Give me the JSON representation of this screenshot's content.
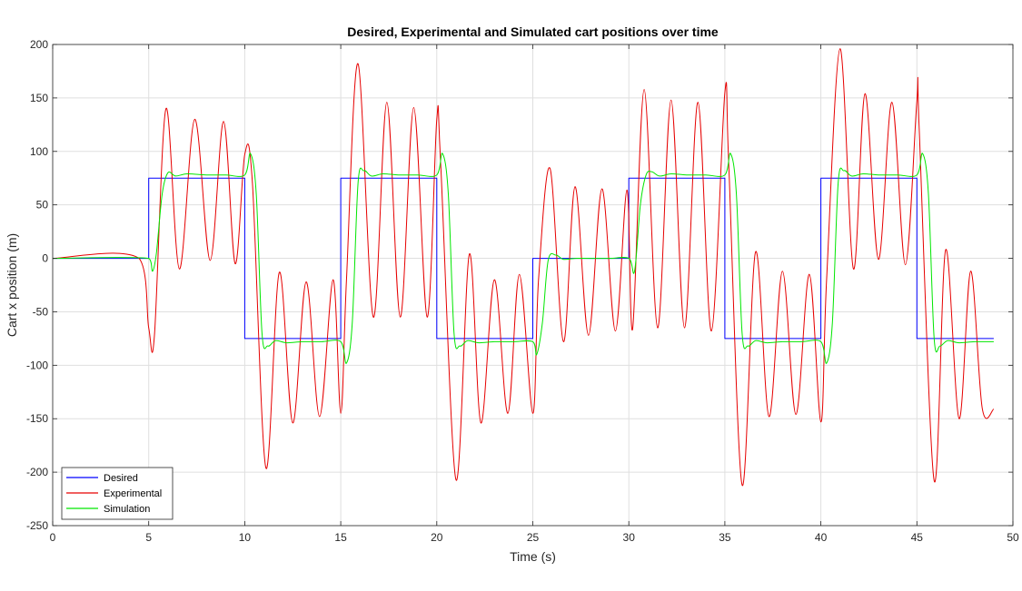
{
  "chart_data": {
    "type": "line",
    "title": "Desired, Experimental and Simulated cart positions over time",
    "xlabel": "Time (s)",
    "ylabel": "Cart x position (m)",
    "xlim": [
      0,
      50
    ],
    "ylim": [
      -250,
      200
    ],
    "xticks": [
      0,
      5,
      10,
      15,
      20,
      25,
      30,
      35,
      40,
      45,
      50
    ],
    "yticks": [
      -250,
      -200,
      -150,
      -100,
      -50,
      0,
      50,
      100,
      150,
      200
    ],
    "xtick_labels": [
      "0",
      "5",
      "10",
      "15",
      "20",
      "25",
      "30",
      "35",
      "40",
      "45",
      "50"
    ],
    "ytick_labels": [
      "-250",
      "-200",
      "-150",
      "-100",
      "-50",
      "0",
      "50",
      "100",
      "150",
      "200"
    ],
    "grid": true,
    "legend_position": "bottom-left",
    "series": [
      {
        "name": "Desired",
        "color": "#0000ff",
        "x": [
          0,
          5,
          5,
          10,
          10,
          15,
          15,
          20,
          20,
          25,
          25,
          30,
          30,
          35,
          35,
          40,
          40,
          45,
          45,
          49
        ],
        "y": [
          0,
          0,
          75,
          75,
          -75,
          -75,
          75,
          75,
          -75,
          -75,
          0,
          0,
          75,
          75,
          -75,
          -75,
          75,
          75,
          -75,
          -75
        ]
      },
      {
        "name": "Experimental",
        "color": "#e60000",
        "x": [
          0,
          4.5,
          5.0,
          5.3,
          5.9,
          6.6,
          7.4,
          8.2,
          8.9,
          9.5,
          10.0,
          10.4,
          11.1,
          11.8,
          12.5,
          13.2,
          13.9,
          14.6,
          15.0,
          15.3,
          15.9,
          16.7,
          17.4,
          18.1,
          18.8,
          19.5,
          20.0,
          20.2,
          21.0,
          21.7,
          22.3,
          23.0,
          23.7,
          24.3,
          25.0,
          25.3,
          25.9,
          26.6,
          27.2,
          27.9,
          28.6,
          29.3,
          29.9,
          30.2,
          30.8,
          31.5,
          32.2,
          32.9,
          33.6,
          34.3,
          35.0,
          35.2,
          35.9,
          36.6,
          37.3,
          38.0,
          38.7,
          39.4,
          40.0,
          40.3,
          41.0,
          41.7,
          42.3,
          43.0,
          43.7,
          44.4,
          45.0,
          45.1,
          45.9,
          46.5,
          47.2,
          47.8,
          48.4,
          49.0
        ],
        "y": [
          0,
          0,
          -65,
          -72,
          140,
          -10,
          130,
          -2,
          128,
          -5,
          97,
          70,
          -196,
          -13,
          -154,
          -22,
          -148,
          -20,
          -145,
          -20,
          182,
          -55,
          146,
          -55,
          141,
          -55,
          130,
          90,
          -207,
          4,
          -154,
          -20,
          -145,
          -15,
          -145,
          -20,
          84,
          -78,
          67,
          -72,
          65,
          -68,
          64,
          -66,
          158,
          -65,
          148,
          -65,
          146,
          -68,
          155,
          90,
          -212,
          6,
          -148,
          -12,
          -146,
          -15,
          -153,
          -20,
          196,
          -10,
          154,
          -1,
          146,
          -6,
          147,
          130,
          -208,
          8,
          -150,
          -12,
          -140,
          -141
        ]
      },
      {
        "name": "Simulation",
        "color": "#00e600",
        "x": [
          0,
          5.0,
          5.2,
          5.4,
          5.7,
          6.0,
          6.4,
          7.0,
          8.0,
          9.0,
          10.0,
          10.3,
          10.6,
          10.9,
          11.2,
          11.6,
          12.2,
          13.0,
          14.0,
          15.0,
          15.3,
          15.6,
          15.9,
          16.2,
          16.6,
          17.2,
          18.0,
          19.0,
          20.0,
          20.3,
          20.6,
          20.9,
          21.2,
          21.6,
          22.2,
          23.0,
          24.0,
          25.0,
          25.2,
          25.5,
          25.8,
          26.2,
          26.6,
          27.2,
          28.0,
          29.0,
          30.0,
          30.3,
          30.6,
          30.9,
          31.2,
          31.6,
          32.2,
          33.0,
          34.0,
          35.0,
          35.3,
          35.6,
          35.9,
          36.2,
          36.6,
          37.2,
          38.0,
          39.0,
          40.0,
          40.3,
          40.6,
          40.9,
          41.2,
          41.6,
          42.2,
          43.0,
          44.0,
          45.0,
          45.3,
          45.6,
          45.9,
          46.2,
          46.6,
          47.2,
          48.0,
          49.0
        ],
        "y": [
          0,
          0,
          -12,
          5,
          60,
          80,
          77,
          79,
          78,
          78,
          78,
          98,
          60,
          -70,
          -82,
          -77,
          -79,
          -78,
          -78,
          -78,
          -98,
          -60,
          70,
          82,
          77,
          79,
          78,
          78,
          78,
          98,
          60,
          -70,
          -82,
          -77,
          -79,
          -78,
          -78,
          -78,
          -90,
          -60,
          -2,
          3,
          -1,
          0,
          0,
          0,
          0,
          -12,
          50,
          78,
          81,
          77,
          79,
          78,
          78,
          78,
          98,
          60,
          -70,
          -82,
          -77,
          -79,
          -78,
          -78,
          -78,
          -98,
          -60,
          70,
          82,
          77,
          79,
          78,
          78,
          78,
          98,
          60,
          -75,
          -82,
          -77,
          -79,
          -78,
          -78
        ]
      }
    ]
  }
}
